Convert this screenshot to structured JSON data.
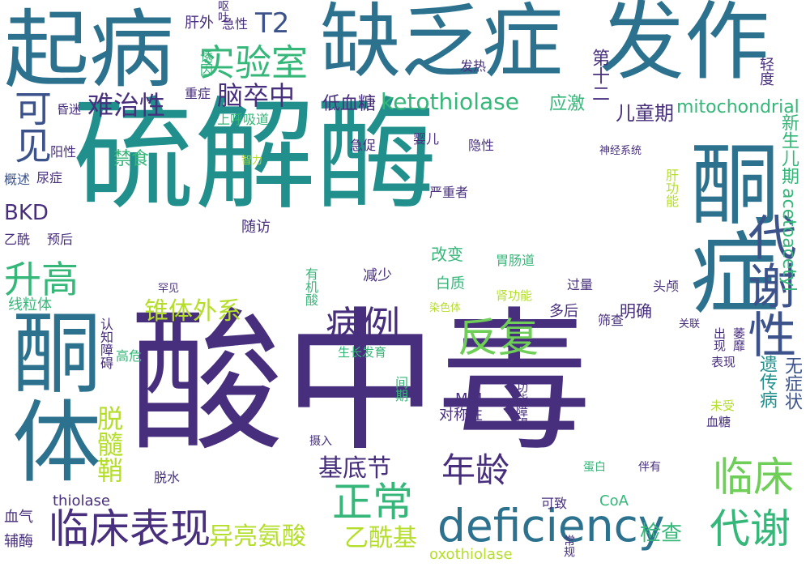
{
  "palette": {
    "dark_purple": "#472f7d",
    "indigo": "#3b528b",
    "blue": "#33638d",
    "teal_blue": "#2c728e",
    "teal": "#21908d",
    "teal_green": "#1f9e89",
    "green": "#35b779",
    "light_green": "#6ece58",
    "lime": "#b5de2b",
    "yellow_green": "#c8e020",
    "deep_purple": "#440154"
  },
  "words": [
    {
      "text": "硫解酶",
      "color": "#21908d"
    },
    {
      "text": "酸中毒",
      "color": "#472f7d"
    },
    {
      "text": "酮症",
      "color": "#2c728e"
    },
    {
      "text": "酮体",
      "color": "#2c728e"
    },
    {
      "text": "发作",
      "color": "#2c728e"
    },
    {
      "text": "缺乏症",
      "color": "#2c728e"
    },
    {
      "text": "起病",
      "color": "#2c728e"
    },
    {
      "text": "临床表现",
      "color": "#472f7d"
    },
    {
      "text": "deficiency",
      "color": "#2c728e"
    },
    {
      "text": "代谢性",
      "color": "#3b528b"
    },
    {
      "text": "实验室",
      "color": "#35b779"
    },
    {
      "text": "反复",
      "color": "#6ece58"
    },
    {
      "text": "正常",
      "color": "#35b779"
    },
    {
      "text": "临床",
      "color": "#6ece58"
    },
    {
      "text": "代谢",
      "color": "#35b779"
    },
    {
      "text": "病例",
      "color": "#472f7d"
    },
    {
      "text": "年龄",
      "color": "#472f7d"
    },
    {
      "text": "升高",
      "color": "#35b779"
    },
    {
      "text": "可见",
      "color": "#3b528b"
    },
    {
      "text": "T2",
      "color": "#3b528b"
    },
    {
      "text": "难治性",
      "color": "#472f7d"
    },
    {
      "text": "脑卒中",
      "color": "#472f7d"
    },
    {
      "text": "ketothiolase",
      "color": "#35b779"
    },
    {
      "text": "锥体外系",
      "color": "#b5de2b"
    },
    {
      "text": "基底节",
      "color": "#472f7d"
    },
    {
      "text": "乙酰基",
      "color": "#b5de2b"
    },
    {
      "text": "异亮氨酸",
      "color": "#b5de2b"
    },
    {
      "text": "检查",
      "color": "#35b779"
    },
    {
      "text": "脱髓鞘",
      "color": "#b5de2b"
    },
    {
      "text": "mitochondrial",
      "color": "#35b779"
    },
    {
      "text": "低血糖",
      "color": "#472f7d"
    },
    {
      "text": "应激",
      "color": "#35b779"
    },
    {
      "text": "儿童期",
      "color": "#472f7d"
    },
    {
      "text": "BKD",
      "color": "#472f7d"
    },
    {
      "text": "acetoacetyl",
      "color": "#35b779"
    },
    {
      "text": "遗传病",
      "color": "#21908d"
    },
    {
      "text": "新生儿期",
      "color": "#35b779"
    },
    {
      "text": "无症状",
      "color": "#3b528b"
    },
    {
      "text": "禁食",
      "color": "#35b779"
    },
    {
      "text": "肝外",
      "color": "#472f7d"
    },
    {
      "text": "急性",
      "color": "#472f7d"
    },
    {
      "text": "呕吐",
      "color": "#472f7d"
    },
    {
      "text": "诱因",
      "color": "#35b779"
    },
    {
      "text": "第十二",
      "color": "#472f7d"
    },
    {
      "text": "发热",
      "color": "#472f7d"
    },
    {
      "text": "轻度",
      "color": "#472f7d"
    },
    {
      "text": "重症",
      "color": "#472f7d"
    },
    {
      "text": "上呼吸道",
      "color": "#35b779"
    },
    {
      "text": "昏迷",
      "color": "#472f7d"
    },
    {
      "text": "婴儿",
      "color": "#472f7d"
    },
    {
      "text": "急促",
      "color": "#472f7d"
    },
    {
      "text": "隐性",
      "color": "#472f7d"
    },
    {
      "text": "神经系统",
      "color": "#472f7d"
    },
    {
      "text": "肝功能",
      "color": "#b5de2b"
    },
    {
      "text": "阳性",
      "color": "#472f7d"
    },
    {
      "text": "智力",
      "color": "#b5de2b"
    },
    {
      "text": "概述",
      "color": "#3b528b"
    },
    {
      "text": "尿症",
      "color": "#472f7d"
    },
    {
      "text": "严重者",
      "color": "#472f7d"
    },
    {
      "text": "乙酰",
      "color": "#472f7d"
    },
    {
      "text": "预后",
      "color": "#472f7d"
    },
    {
      "text": "随访",
      "color": "#472f7d"
    },
    {
      "text": "改变",
      "color": "#35b779"
    },
    {
      "text": "线粒体",
      "color": "#35b779"
    },
    {
      "text": "减少",
      "color": "#472f7d"
    },
    {
      "text": "白质",
      "color": "#35b779"
    },
    {
      "text": "胃肠道",
      "color": "#35b779"
    },
    {
      "text": "过量",
      "color": "#472f7d"
    },
    {
      "text": "头颅",
      "color": "#472f7d"
    },
    {
      "text": "多后",
      "color": "#472f7d"
    },
    {
      "text": "明确",
      "color": "#472f7d"
    },
    {
      "text": "罕见",
      "color": "#472f7d"
    },
    {
      "text": "有机酸",
      "color": "#35b779"
    },
    {
      "text": "染色体",
      "color": "#b5de2b"
    },
    {
      "text": "肾功能",
      "color": "#b5de2b"
    },
    {
      "text": "筛查",
      "color": "#472f7d"
    },
    {
      "text": "关联",
      "color": "#472f7d"
    },
    {
      "text": "出现",
      "color": "#472f7d"
    },
    {
      "text": "萎靡",
      "color": "#472f7d"
    },
    {
      "text": "认知障碍",
      "color": "#472f7d"
    },
    {
      "text": "高危",
      "color": "#35b779"
    },
    {
      "text": "生长发育",
      "color": "#35b779"
    },
    {
      "text": "表现",
      "color": "#472f7d"
    },
    {
      "text": "间期",
      "color": "#35b779"
    },
    {
      "text": "功能障碍",
      "color": "#472f7d"
    },
    {
      "text": "未受",
      "color": "#b5de2b"
    },
    {
      "text": "血糖",
      "color": "#472f7d"
    },
    {
      "text": "MRI",
      "color": "#472f7d"
    },
    {
      "text": "对称性",
      "color": "#472f7d"
    },
    {
      "text": "摄入",
      "color": "#472f7d"
    },
    {
      "text": "蛋白",
      "color": "#35b779"
    },
    {
      "text": "伴有",
      "color": "#472f7d"
    },
    {
      "text": "脱水",
      "color": "#472f7d"
    },
    {
      "text": "thiolase",
      "color": "#472f7d"
    },
    {
      "text": "可致",
      "color": "#472f7d"
    },
    {
      "text": "CoA",
      "color": "#35b779"
    },
    {
      "text": "血气",
      "color": "#472f7d"
    },
    {
      "text": "辅酶",
      "color": "#472f7d"
    },
    {
      "text": "oxothiolase",
      "color": "#b5de2b"
    },
    {
      "text": "常规",
      "color": "#472f7d"
    }
  ]
}
